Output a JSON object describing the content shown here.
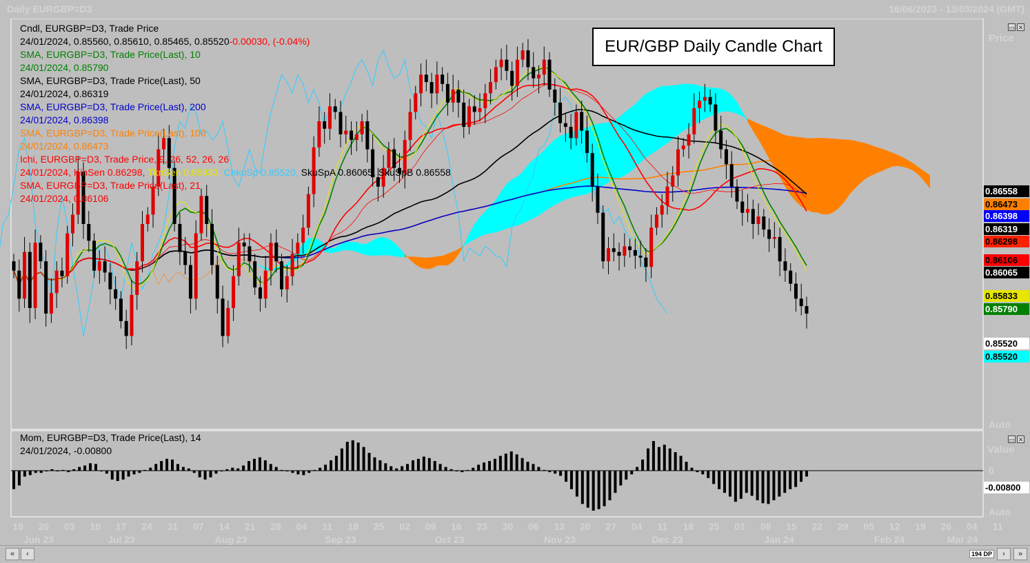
{
  "header": {
    "left": "Daily EURGBP=D3",
    "right": "16/06/2023 - 13/03/2024 (GMT)"
  },
  "title": "EUR/GBP Daily Candle Chart",
  "legend": [
    {
      "text": "Cndl, EURGBP=D3, Trade Price",
      "color": "#000000"
    },
    {
      "text": "24/01/2024, 0.85560, 0.85610, 0.85465, 0.85520",
      "color": "#000000",
      "extra": "-0.00030, (-0.04%)",
      "extra_color": "#ff0000"
    },
    {
      "text": "SMA, EURGBP=D3, Trade Price(Last),  10",
      "color": "#008000"
    },
    {
      "text": "24/01/2024, 0.85790",
      "color": "#008000"
    },
    {
      "text": "SMA, EURGBP=D3, Trade Price(Last),  50",
      "color": "#000000"
    },
    {
      "text": "24/01/2024, 0.86319",
      "color": "#000000"
    },
    {
      "text": "SMA, EURGBP=D3, Trade Price(Last),  200",
      "color": "#0000cc"
    },
    {
      "text": "24/01/2024, 0.86398",
      "color": "#0000cc"
    },
    {
      "text": "SMA, EURGBP=D3, Trade Price(Last),  100",
      "color": "#ff8000"
    },
    {
      "text": "24/01/2024, 0.86473",
      "color": "#ff8000"
    },
    {
      "text": "Ichi, EURGBP=D3, Trade Price,  9, 26, 52, 26, 26",
      "color": "#ff0000"
    },
    {
      "text": "24/01/2024, KinSen 0.86298,",
      "color": "#ff0000",
      "parts": [
        {
          "t": " TknSen 0.85833,",
          "c": "#e6e600"
        },
        {
          "t": " ChkuSp 0.85520,",
          "c": "#33ccff"
        },
        {
          "t": " SkuSpA 0.86065, SkuSpB 0.86558",
          "c": "#000000"
        }
      ]
    },
    {
      "text": "SMA, EURGBP=D3, Trade Price(Last),  21",
      "color": "#ff0000"
    },
    {
      "text": "24/01/2024, 0.86106",
      "color": "#ff0000"
    }
  ],
  "mom_legend": [
    {
      "text": "Mom, EURGBP=D3, Trade Price(Last),  14",
      "color": "#000000"
    },
    {
      "text": "24/01/2024, -0.00800",
      "color": "#000000"
    }
  ],
  "price_labels": [
    {
      "text": "0.86558",
      "bg": "#000000",
      "fg": "#ffffff",
      "value": 0.86558
    },
    {
      "text": "0.86473",
      "bg": "#ff8000",
      "fg": "#000000",
      "value": 0.86473
    },
    {
      "text": "0.86398",
      "bg": "#0000ff",
      "fg": "#ffffff",
      "value": 0.86398
    },
    {
      "text": "0.86319",
      "bg": "#000000",
      "fg": "#ffffff",
      "value": 0.86319
    },
    {
      "text": "0.86298",
      "bg": "#ff2000",
      "fg": "#000000",
      "value": 0.86298
    },
    {
      "text": "0.86106",
      "bg": "#ff0000",
      "fg": "#000000",
      "value": 0.86106
    },
    {
      "text": "0.86065",
      "bg": "#000000",
      "fg": "#ffffff",
      "value": 0.86065
    },
    {
      "text": "0.85833",
      "bg": "#e6e600",
      "fg": "#000000",
      "value": 0.85833
    },
    {
      "text": "0.85790",
      "bg": "#008000",
      "fg": "#ffffff",
      "value": 0.8579
    },
    {
      "text": "0.85520",
      "bg": "#ffffff",
      "fg": "#000000",
      "value": 0.8552
    },
    {
      "text": "0.85520",
      "bg": "#00ffff",
      "fg": "#000000",
      "value": 0.8552
    }
  ],
  "axis_ghost": {
    "price": "Price",
    "auto": "Auto",
    "value": "Value",
    "zero": "0"
  },
  "mom_label": {
    "text": "-0.00800",
    "value": -0.008
  },
  "chart_data": {
    "type": "candlestick",
    "instrument": "EURGBP=D3",
    "period": "Daily",
    "range": "16/06/2023 - 13/03/2024",
    "title": "EUR/GBP Daily Candle Chart",
    "ylim": [
      0.849,
      0.871
    ],
    "x_day_ticks": [
      "19",
      "26",
      "03",
      "10",
      "17",
      "24",
      "31",
      "07",
      "14",
      "21",
      "28",
      "04",
      "11",
      "18",
      "25",
      "02",
      "09",
      "16",
      "23",
      "30",
      "06",
      "13",
      "20",
      "27",
      "04",
      "11",
      "18",
      "25",
      "01",
      "08",
      "15",
      "22",
      "29",
      "05",
      "12",
      "19",
      "26",
      "04",
      "11"
    ],
    "x_month_ticks": [
      "Jun 23",
      "Jul 23",
      "Aug 23",
      "Sep 23",
      "Oct 23",
      "Nov 23",
      "Dec 23",
      "Jan 24",
      "Feb 24",
      "Mar 24"
    ],
    "close_series": [
      0.8575,
      0.856,
      0.8585,
      0.8555,
      0.859,
      0.858,
      0.8552,
      0.8563,
      0.8575,
      0.8572,
      0.8595,
      0.8605,
      0.8628,
      0.86,
      0.8591,
      0.8575,
      0.858,
      0.8574,
      0.8565,
      0.856,
      0.8548,
      0.854,
      0.8562,
      0.858,
      0.86,
      0.8605,
      0.862,
      0.864,
      0.8646,
      0.863,
      0.86,
      0.8585,
      0.8578,
      0.856,
      0.8595,
      0.8615,
      0.86,
      0.8578,
      0.856,
      0.854,
      0.8555,
      0.8572,
      0.859,
      0.8588,
      0.858,
      0.8566,
      0.856,
      0.8575,
      0.859,
      0.858,
      0.8565,
      0.8572,
      0.8584,
      0.859,
      0.8598,
      0.8616,
      0.8641,
      0.8655,
      0.8651,
      0.8663,
      0.866,
      0.8648,
      0.865,
      0.8645,
      0.8648,
      0.8655,
      0.864,
      0.8625,
      0.862,
      0.863,
      0.864,
      0.863,
      0.8627,
      0.8645,
      0.866,
      0.867,
      0.868,
      0.8676,
      0.867,
      0.868,
      0.8675,
      0.8665,
      0.8672,
      0.8665,
      0.8652,
      0.8663,
      0.866,
      0.8662,
      0.867,
      0.8676,
      0.8684,
      0.8688,
      0.8682,
      0.8674,
      0.8688,
      0.8693,
      0.8684,
      0.8678,
      0.868,
      0.8688,
      0.8672,
      0.8665,
      0.8654,
      0.8652,
      0.8646,
      0.866,
      0.865,
      0.8638,
      0.862,
      0.8606,
      0.858,
      0.8587,
      0.8585,
      0.8583,
      0.8588,
      0.8586,
      0.8583,
      0.8582,
      0.8577,
      0.8598,
      0.8605,
      0.861,
      0.862,
      0.8626,
      0.864,
      0.8642,
      0.8648,
      0.8662,
      0.8666,
      0.8668,
      0.8664,
      0.865,
      0.864,
      0.8632,
      0.862,
      0.8612,
      0.8606,
      0.8608,
      0.86,
      0.8604,
      0.8597,
      0.8592,
      0.8593,
      0.858,
      0.8575,
      0.8568,
      0.856,
      0.8556,
      0.8552
    ],
    "momentum_series": [
      -0.0025,
      -0.002,
      -0.0008,
      -0.0006,
      -0.0003,
      -0.0003,
      -0.0001,
      0.0002,
      -0.0001,
      0.0001,
      -0.0002,
      0.0002,
      0.0005,
      0.0007,
      0.001,
      0.0009,
      -0.0001,
      -0.0004,
      -0.0012,
      -0.0014,
      -0.0012,
      -0.0008,
      -0.0005,
      -0.0003,
      0.0001,
      0.0004,
      0.0009,
      0.0013,
      0.0016,
      0.0015,
      0.0009,
      0.0005,
      0.0003,
      -0.0003,
      -0.0009,
      -0.0012,
      -0.0009,
      -0.0004,
      -0.0001,
      0.0002,
      0.0004,
      0.0003,
      0.0007,
      0.0013,
      0.0016,
      0.0018,
      0.0014,
      0.0009,
      0.0005,
      0.0001,
      -0.0001,
      -0.0003,
      -0.0005,
      -0.0006,
      -0.0003,
      0.0001,
      0.0004,
      0.0008,
      0.0014,
      0.002,
      0.003,
      0.0039,
      0.0041,
      0.0038,
      0.0032,
      0.0024,
      0.0018,
      0.0014,
      0.001,
      0.0006,
      0.0003,
      0.0006,
      0.0009,
      0.0014,
      0.0016,
      0.0019,
      0.0017,
      0.0013,
      0.0009,
      0.0005,
      0.0002,
      -0.0001,
      -0.0002,
      0.0001,
      0.0004,
      0.0008,
      0.0011,
      0.0013,
      0.0016,
      0.002,
      0.0023,
      0.0026,
      0.0022,
      0.0017,
      0.0012,
      0.0009,
      0.0005,
      0.0001,
      -0.0002,
      -0.0004,
      -0.0007,
      -0.0015,
      -0.0025,
      -0.0035,
      -0.0045,
      -0.005,
      -0.0054,
      -0.0052,
      -0.0048,
      -0.004,
      -0.003,
      -0.002,
      -0.0012,
      -0.0005,
      0.0005,
      0.0015,
      0.003,
      0.004,
      0.0032,
      0.0035,
      0.003,
      0.0025,
      0.002,
      0.0012,
      0.0004,
      -0.0002,
      -0.0005,
      -0.001,
      -0.0018,
      -0.0025,
      -0.003,
      -0.0035,
      -0.0042,
      -0.0038,
      -0.003,
      -0.0034,
      -0.004,
      -0.0044,
      -0.0045,
      -0.004,
      -0.0035,
      -0.003,
      -0.0025,
      -0.0022,
      -0.0015,
      -0.0008
    ]
  },
  "scrollbar": {
    "dp": "194 DP"
  }
}
